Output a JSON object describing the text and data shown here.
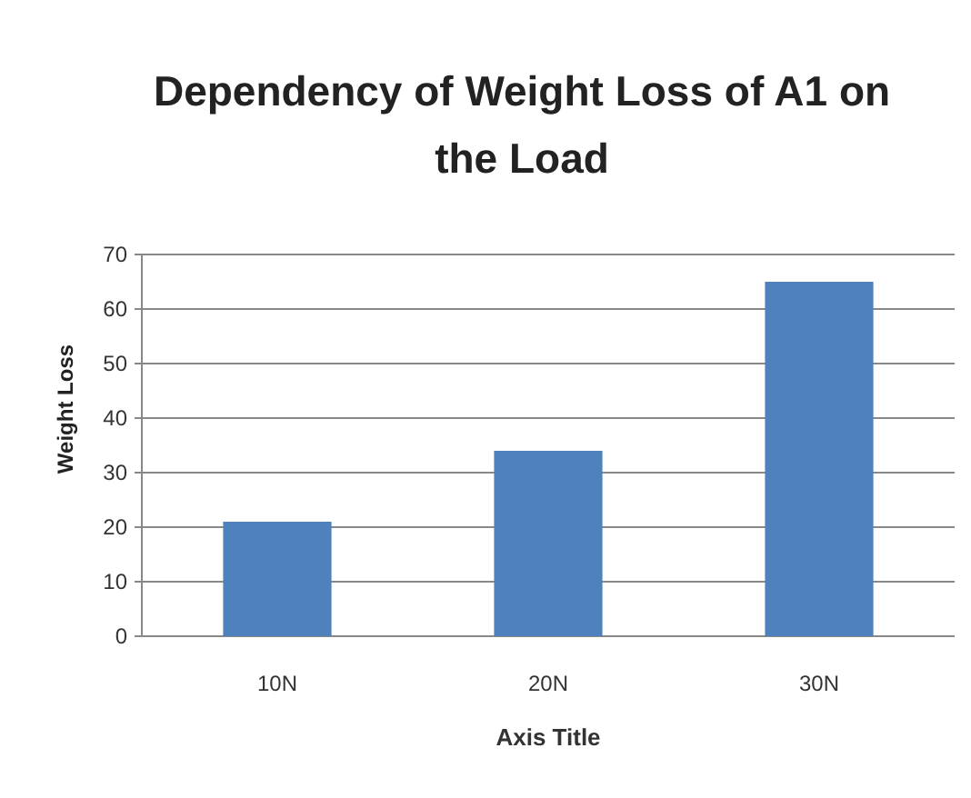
{
  "chart_data": {
    "type": "bar",
    "title": "Dependency of Weight Loss of A1 on the Load",
    "xlabel": "Axis Title",
    "ylabel": "Weight Loss",
    "categories": [
      "10N",
      "20N",
      "30N"
    ],
    "values": [
      21,
      34,
      65
    ],
    "color": "#4f81bd",
    "ylim": [
      0,
      70
    ],
    "yticks": [
      0,
      10,
      20,
      30,
      40,
      50,
      60,
      70
    ],
    "grid": "y"
  }
}
